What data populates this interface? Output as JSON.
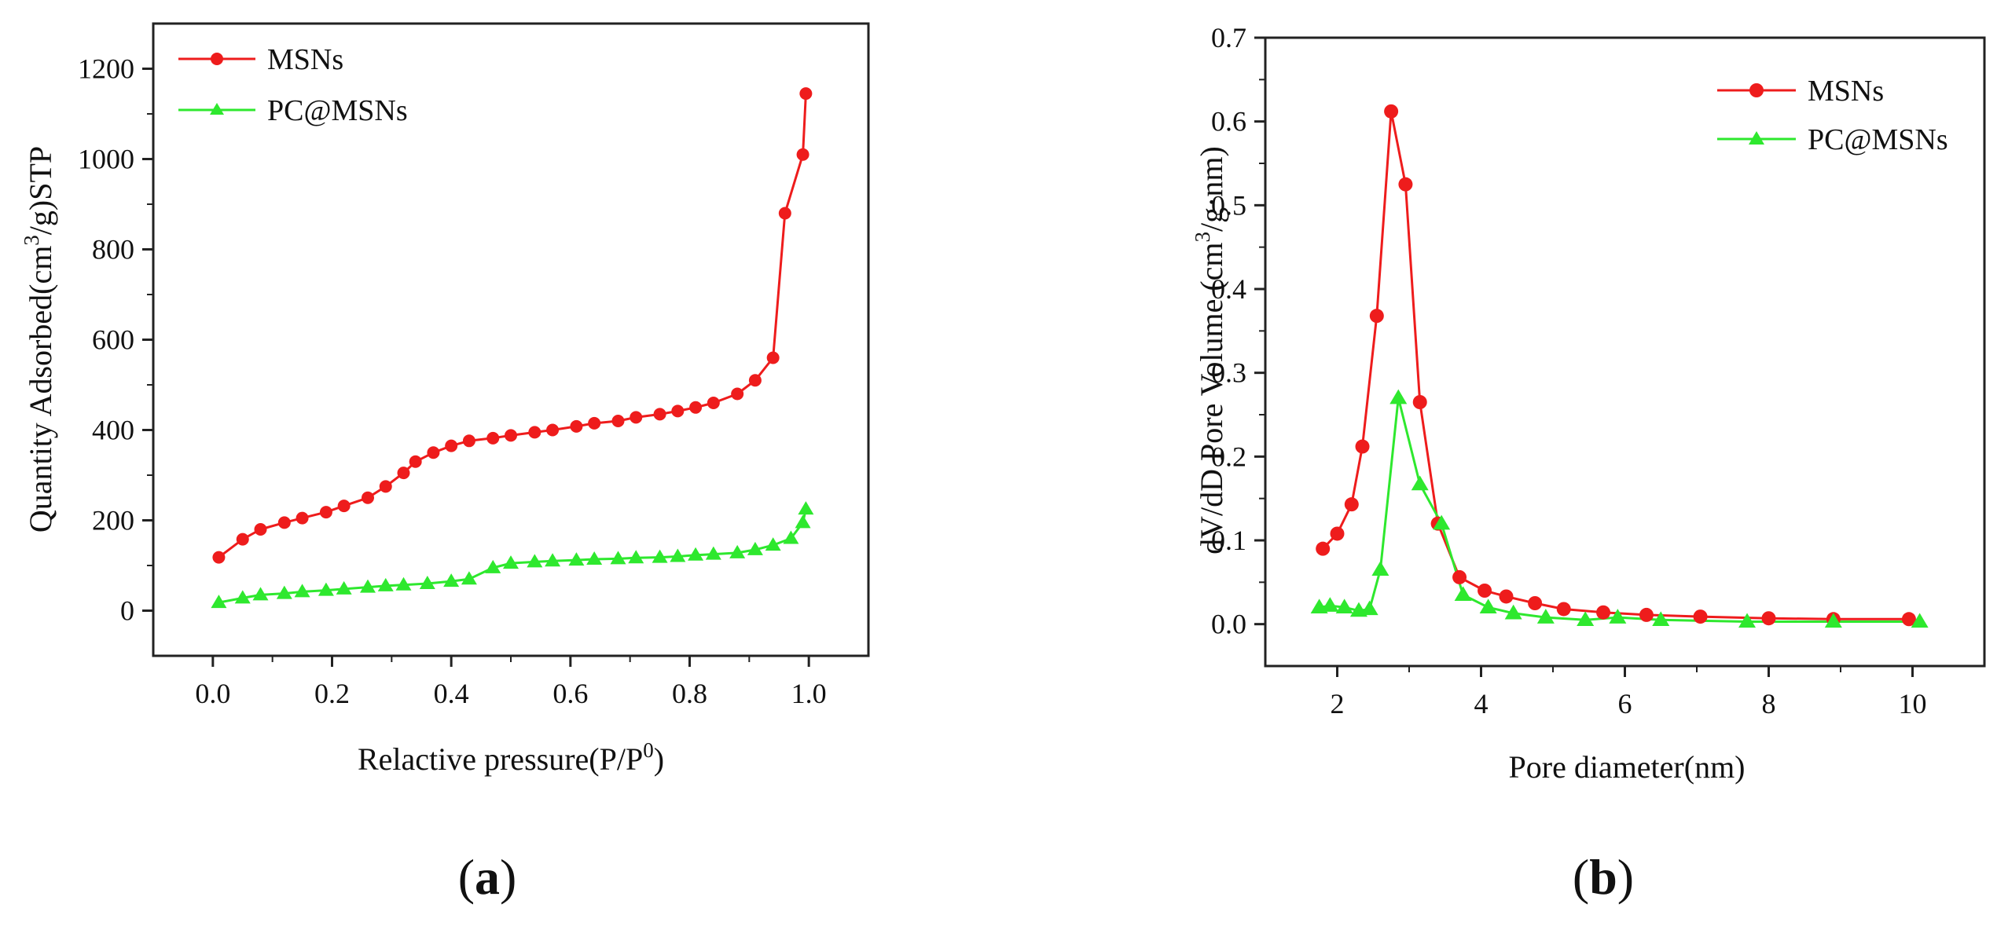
{
  "chart_data": [
    {
      "panel": "a",
      "type": "line",
      "panel_label_open": "(",
      "panel_label_letter": "a",
      "panel_label_close": ")",
      "xlabel": "Relactive pressure(P/P",
      "xlabel_sup": "0",
      "xlabel_end": ")",
      "ylabel_pre": "Quantity Adsorbed(cm",
      "ylabel_sup": "3",
      "ylabel_post": "/g)STP",
      "xlim": [
        -0.1,
        1.1
      ],
      "ylim": [
        -100,
        1300
      ],
      "xticks": [
        0.0,
        0.2,
        0.4,
        0.6,
        0.8,
        1.0
      ],
      "xtick_labels": [
        "0.0",
        "0.2",
        "0.4",
        "0.6",
        "0.8",
        "1.0"
      ],
      "yticks": [
        0,
        200,
        400,
        600,
        800,
        1000,
        1200
      ],
      "ytick_labels": [
        "0",
        "200",
        "400",
        "600",
        "800",
        "1000",
        "1200"
      ],
      "legend_position": "top-left",
      "series": [
        {
          "name": "MSNs",
          "color": "#ee1c1c",
          "marker": "circle",
          "x": [
            0.01,
            0.05,
            0.08,
            0.12,
            0.15,
            0.19,
            0.22,
            0.26,
            0.29,
            0.32,
            0.34,
            0.37,
            0.4,
            0.43,
            0.47,
            0.5,
            0.54,
            0.57,
            0.61,
            0.64,
            0.68,
            0.71,
            0.75,
            0.78,
            0.81,
            0.84,
            0.88,
            0.91,
            0.94,
            0.96,
            0.99,
            0.995
          ],
          "y": [
            118,
            158,
            180,
            195,
            205,
            218,
            232,
            250,
            275,
            305,
            330,
            350,
            365,
            376,
            382,
            388,
            395,
            400,
            408,
            415,
            420,
            428,
            435,
            442,
            450,
            460,
            480,
            510,
            560,
            880,
            1010,
            1145
          ]
        },
        {
          "name": "PC@MSNs",
          "color": "#2ee82e",
          "marker": "triangle",
          "x": [
            0.01,
            0.05,
            0.08,
            0.12,
            0.15,
            0.19,
            0.22,
            0.26,
            0.29,
            0.32,
            0.36,
            0.4,
            0.43,
            0.47,
            0.5,
            0.54,
            0.57,
            0.61,
            0.64,
            0.68,
            0.71,
            0.75,
            0.78,
            0.81,
            0.84,
            0.88,
            0.91,
            0.94,
            0.97,
            0.99,
            0.995
          ],
          "y": [
            18,
            28,
            35,
            38,
            42,
            45,
            48,
            52,
            55,
            57,
            60,
            65,
            70,
            95,
            105,
            108,
            110,
            112,
            114,
            115,
            117,
            118,
            120,
            123,
            125,
            128,
            135,
            145,
            160,
            195,
            225
          ]
        }
      ]
    },
    {
      "panel": "b",
      "type": "line",
      "panel_label_open": "(",
      "panel_label_letter": "b",
      "panel_label_close": ")",
      "xlabel": "Pore diameter(nm)",
      "ylabel_pre": "dV/dD Pore Volume (cm",
      "ylabel_sup": "3",
      "ylabel_post": "/g·nm)",
      "xlim": [
        1,
        11
      ],
      "ylim": [
        -0.05,
        0.7
      ],
      "xticks": [
        2,
        4,
        6,
        8,
        10
      ],
      "xtick_labels": [
        "2",
        "4",
        "6",
        "8",
        "10"
      ],
      "yticks": [
        0.0,
        0.1,
        0.2,
        0.3,
        0.4,
        0.5,
        0.6,
        0.7
      ],
      "ytick_labels": [
        "0.0",
        "0.1",
        "0.2",
        "0.3",
        "0.4",
        "0.5",
        "0.6",
        "0.7"
      ],
      "legend_position": "top-right",
      "series": [
        {
          "name": "MSNs",
          "color": "#ee1c1c",
          "marker": "circle",
          "x": [
            1.8,
            2.0,
            2.2,
            2.35,
            2.55,
            2.75,
            2.95,
            3.15,
            3.4,
            3.7,
            4.05,
            4.35,
            4.75,
            5.15,
            5.7,
            6.3,
            7.05,
            8.0,
            8.9,
            9.95
          ],
          "y": [
            0.09,
            0.108,
            0.143,
            0.212,
            0.368,
            0.612,
            0.525,
            0.265,
            0.12,
            0.056,
            0.04,
            0.033,
            0.025,
            0.018,
            0.014,
            0.011,
            0.009,
            0.007,
            0.006,
            0.006
          ]
        },
        {
          "name": "PC@MSNs",
          "color": "#2ee82e",
          "marker": "triangle",
          "x": [
            1.75,
            1.9,
            2.1,
            2.3,
            2.45,
            2.6,
            2.85,
            3.15,
            3.45,
            3.75,
            4.1,
            4.45,
            4.9,
            5.45,
            5.9,
            6.5,
            7.7,
            8.9,
            10.1
          ],
          "y": [
            0.02,
            0.022,
            0.02,
            0.016,
            0.018,
            0.065,
            0.27,
            0.167,
            0.12,
            0.035,
            0.02,
            0.013,
            0.008,
            0.005,
            0.008,
            0.005,
            0.003,
            0.003,
            0.003
          ]
        }
      ]
    }
  ]
}
